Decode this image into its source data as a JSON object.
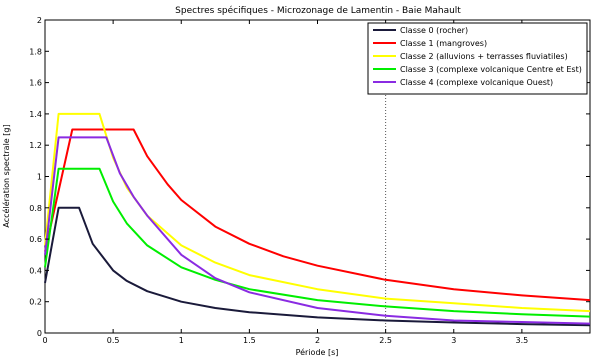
{
  "chart_data": {
    "type": "line",
    "title": "Spectres spécifiques - Microzonage de Lamentin - Baie Mahault",
    "xlabel": "Période [s]",
    "ylabel": "Accélération spectrale [g]",
    "xlim": [
      0,
      4
    ],
    "ylim": [
      0,
      2
    ],
    "xticks": [
      0,
      0.5,
      1,
      1.5,
      2,
      2.5,
      3,
      3.5
    ],
    "xtick_labels": [
      "0",
      "0.5",
      "1",
      "1.5",
      "2",
      "2.5",
      "3",
      "3.5"
    ],
    "yticks": [
      0,
      0.2,
      0.4,
      0.6,
      0.8,
      1,
      1.2,
      1.4,
      1.6,
      1.8,
      2
    ],
    "ytick_labels": [
      "0",
      "0.2",
      "0.4",
      "0.6",
      "0.8",
      "1",
      "1.2",
      "1.4",
      "1.6",
      "1.8",
      "2"
    ],
    "grid": false,
    "legend_position": "top-right",
    "vline_x": 2.5,
    "series": [
      {
        "name": "Classe 0 (rocher)",
        "color": "#1a1a3a",
        "x": [
          0,
          0.1,
          0.25,
          0.35,
          0.5,
          0.6,
          0.75,
          1.0,
          1.25,
          1.5,
          2.0,
          2.5,
          3.0,
          3.5,
          4.0
        ],
        "y": [
          0.32,
          0.8,
          0.8,
          0.57,
          0.4,
          0.333,
          0.267,
          0.2,
          0.16,
          0.133,
          0.1,
          0.08,
          0.067,
          0.057,
          0.05
        ]
      },
      {
        "name": "Classe 1 (mangroves)",
        "color": "#ff0000",
        "x": [
          0,
          0.2,
          0.65,
          0.75,
          0.9,
          1.0,
          1.25,
          1.5,
          1.75,
          2.0,
          2.5,
          3.0,
          3.5,
          4.0
        ],
        "y": [
          0.52,
          1.3,
          1.3,
          1.13,
          0.95,
          0.85,
          0.68,
          0.57,
          0.49,
          0.43,
          0.34,
          0.28,
          0.24,
          0.21
        ]
      },
      {
        "name": "Classe 2 (alluvions + terrasses fluviatiles)",
        "color": "#ffff00",
        "x": [
          0,
          0.1,
          0.4,
          0.5,
          0.6,
          0.75,
          1.0,
          1.25,
          1.5,
          2.0,
          2.5,
          3.0,
          3.5,
          4.0
        ],
        "y": [
          0.56,
          1.4,
          1.4,
          1.12,
          0.93,
          0.75,
          0.56,
          0.45,
          0.37,
          0.28,
          0.22,
          0.19,
          0.16,
          0.14
        ]
      },
      {
        "name": "Classe 3 (complexe volcanique Centre et Est)",
        "color": "#00ee00",
        "x": [
          0,
          0.1,
          0.4,
          0.5,
          0.6,
          0.75,
          1.0,
          1.25,
          1.5,
          2.0,
          2.5,
          3.0,
          3.5,
          4.0
        ],
        "y": [
          0.42,
          1.05,
          1.05,
          0.84,
          0.7,
          0.56,
          0.42,
          0.34,
          0.28,
          0.21,
          0.17,
          0.14,
          0.12,
          0.105
        ]
      },
      {
        "name": "Classe 4 (complexe volcanique Ouest)",
        "color": "#8a2be2",
        "x": [
          0,
          0.1,
          0.45,
          0.55,
          0.65,
          0.75,
          1.0,
          1.25,
          1.5,
          2.0,
          2.5,
          3.0,
          3.5,
          4.0
        ],
        "y": [
          0.5,
          1.25,
          1.25,
          1.02,
          0.87,
          0.75,
          0.5,
          0.35,
          0.26,
          0.16,
          0.11,
          0.08,
          0.07,
          0.06
        ]
      }
    ]
  }
}
